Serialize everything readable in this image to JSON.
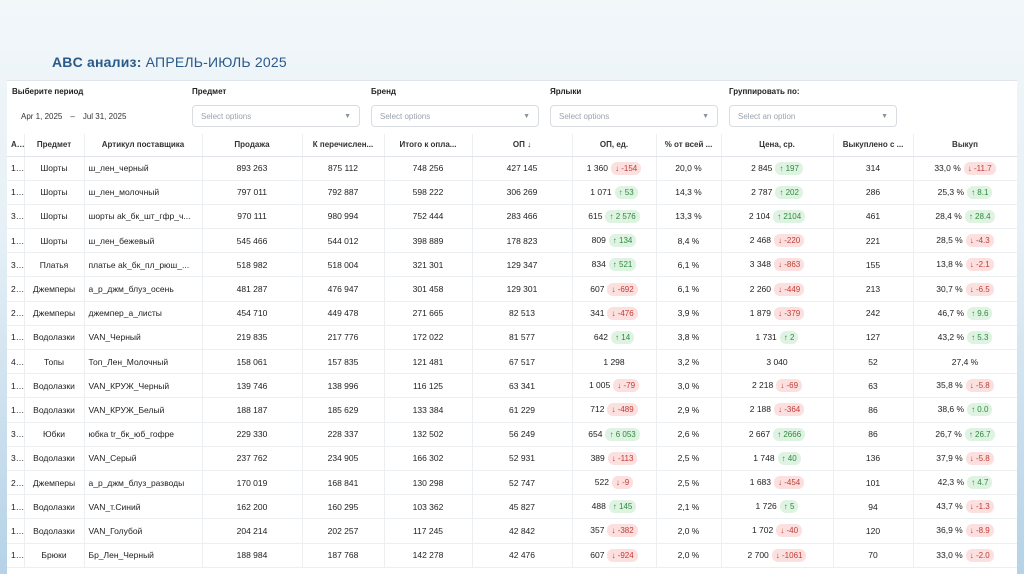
{
  "slide": {
    "title_bold": "ABC анализ:",
    "title_rest": "АПРЕЛЬ-ИЮЛЬ 2025"
  },
  "filters": {
    "period": {
      "label": "Выберите период",
      "from": "Apr 1, 2025",
      "sep": "–",
      "to": "Jul 31, 2025"
    },
    "subject": {
      "label": "Предмет",
      "placeholder": "Select options"
    },
    "brand": {
      "label": "Бренд",
      "placeholder": "Select options"
    },
    "tags": {
      "label": "Ярлыки",
      "placeholder": "Select options"
    },
    "group": {
      "label": "Группировать по:",
      "placeholder": "Select an option"
    }
  },
  "table": {
    "headers": [
      "А..",
      "Предмет",
      "Артикул поставщика",
      "Продажа",
      "К перечислен...",
      "Итого к опла...",
      "ОП ↓",
      "ОП, ед.",
      "% от всей ...",
      "Цена, ср.",
      "Выкуплено с ...",
      "Выкуп"
    ],
    "rows": [
      {
        "a": "1..",
        "subject": "Шорты",
        "article": "ш_лен_черный",
        "sale": "893 263",
        "transfer": "875 112",
        "total": "748 256",
        "op": "427 145",
        "op_units": "1 360",
        "op_delta": "↓ -154",
        "op_dir": "down",
        "pct": "20,0 %",
        "price": "2 845",
        "price_delta": "↑ 197",
        "price_dir": "up",
        "bought": "314",
        "buyout": "33,0 %",
        "buyout_delta": "↓ -11.7",
        "buyout_dir": "down"
      },
      {
        "a": "1..",
        "subject": "Шорты",
        "article": "ш_лен_молочный",
        "sale": "797 011",
        "transfer": "792 887",
        "total": "598 222",
        "op": "306 269",
        "op_units": "1 071",
        "op_delta": "↑ 53",
        "op_dir": "up",
        "pct": "14,3 %",
        "price": "2 787",
        "price_delta": "↑ 202",
        "price_dir": "up",
        "bought": "286",
        "buyout": "25,3 %",
        "buyout_delta": "↑ 8.1",
        "buyout_dir": "up"
      },
      {
        "a": "3..",
        "subject": "Шорты",
        "article": "шорты ak_бк_шт_гфр_ч...",
        "sale": "970 111",
        "transfer": "980 994",
        "total": "752 444",
        "op": "283 466",
        "op_units": "615",
        "op_delta": "↑ 2 576",
        "op_dir": "up",
        "pct": "13,3 %",
        "price": "2 104",
        "price_delta": "↑ 2104",
        "price_dir": "up",
        "bought": "461",
        "buyout": "28,4 %",
        "buyout_delta": "↑ 28.4",
        "buyout_dir": "up"
      },
      {
        "a": "1..",
        "subject": "Шорты",
        "article": "ш_лен_бежевый",
        "sale": "545 466",
        "transfer": "544 012",
        "total": "398 889",
        "op": "178 823",
        "op_units": "809",
        "op_delta": "↑ 134",
        "op_dir": "up",
        "pct": "8,4 %",
        "price": "2 468",
        "price_delta": "↓ -220",
        "price_dir": "down",
        "bought": "221",
        "buyout": "28,5 %",
        "buyout_delta": "↓ -4.3",
        "buyout_dir": "down"
      },
      {
        "a": "3..",
        "subject": "Платья",
        "article": "платье ak_бк_пл_рюш_...",
        "sale": "518 982",
        "transfer": "518 004",
        "total": "321 301",
        "op": "129 347",
        "op_units": "834",
        "op_delta": "↑ 521",
        "op_dir": "up",
        "pct": "6,1 %",
        "price": "3 348",
        "price_delta": "↓ -863",
        "price_dir": "down",
        "bought": "155",
        "buyout": "13,8 %",
        "buyout_delta": "↓ -2.1",
        "buyout_dir": "down"
      },
      {
        "a": "2..",
        "subject": "Джемперы",
        "article": "а_р_джм_блуз_осень",
        "sale": "481 287",
        "transfer": "476 947",
        "total": "301 458",
        "op": "129 301",
        "op_units": "607",
        "op_delta": "↓ -692",
        "op_dir": "down",
        "pct": "6,1 %",
        "price": "2 260",
        "price_delta": "↓ -449",
        "price_dir": "down",
        "bought": "213",
        "buyout": "30,7 %",
        "buyout_delta": "↓ -6.5",
        "buyout_dir": "down"
      },
      {
        "a": "2..",
        "subject": "Джемперы",
        "article": "джемпер_а_листы",
        "sale": "454 710",
        "transfer": "449 478",
        "total": "271 665",
        "op": "82 513",
        "op_units": "341",
        "op_delta": "↓ -476",
        "op_dir": "down",
        "pct": "3,9 %",
        "price": "1 879",
        "price_delta": "↓ -379",
        "price_dir": "down",
        "bought": "242",
        "buyout": "46,7 %",
        "buyout_delta": "↑ 9.6",
        "buyout_dir": "up"
      },
      {
        "a": "1..",
        "subject": "Водолазки",
        "article": "VAN_Черный",
        "sale": "219 835",
        "transfer": "217 776",
        "total": "172 022",
        "op": "81 577",
        "op_units": "642",
        "op_delta": "↑ 14",
        "op_dir": "up",
        "pct": "3,8 %",
        "price": "1 731",
        "price_delta": "↑ 2",
        "price_dir": "up",
        "bought": "127",
        "buyout": "43,2 %",
        "buyout_delta": "↑ 5.3",
        "buyout_dir": "up"
      },
      {
        "a": "4..",
        "subject": "Топы",
        "article": "Топ_Лен_Молочный",
        "sale": "158 061",
        "transfer": "157 835",
        "total": "121 481",
        "op": "67 517",
        "op_units": "1 298",
        "op_delta": "",
        "op_dir": "",
        "pct": "3,2 %",
        "price": "3 040",
        "price_delta": "",
        "price_dir": "",
        "bought": "52",
        "buyout": "27,4 %",
        "buyout_delta": "",
        "buyout_dir": ""
      },
      {
        "a": "1..",
        "subject": "Водолазки",
        "article": "VAN_КРУЖ_Черный",
        "sale": "139 746",
        "transfer": "138 996",
        "total": "116 125",
        "op": "63 341",
        "op_units": "1 005",
        "op_delta": "↓ -79",
        "op_dir": "down",
        "pct": "3,0 %",
        "price": "2 218",
        "price_delta": "↓ -69",
        "price_dir": "down",
        "bought": "63",
        "buyout": "35,8 %",
        "buyout_delta": "↓ -5.8",
        "buyout_dir": "down"
      },
      {
        "a": "1..",
        "subject": "Водолазки",
        "article": "VAN_КРУЖ_Белый",
        "sale": "188 187",
        "transfer": "185 629",
        "total": "133 384",
        "op": "61 229",
        "op_units": "712",
        "op_delta": "↓ -489",
        "op_dir": "down",
        "pct": "2,9 %",
        "price": "2 188",
        "price_delta": "↓ -364",
        "price_dir": "down",
        "bought": "86",
        "buyout": "38,6 %",
        "buyout_delta": "↑ 0.0",
        "buyout_dir": "up"
      },
      {
        "a": "3..",
        "subject": "Юбки",
        "article": "юбка tr_бк_юб_гофре",
        "sale": "229 330",
        "transfer": "228 337",
        "total": "132 502",
        "op": "56 249",
        "op_units": "654",
        "op_delta": "↑ 6 053",
        "op_dir": "up",
        "pct": "2,6 %",
        "price": "2 667",
        "price_delta": "↑ 2666",
        "price_dir": "up",
        "bought": "86",
        "buyout": "26,7 %",
        "buyout_delta": "↑ 26.7",
        "buyout_dir": "up"
      },
      {
        "a": "3..",
        "subject": "Водолазки",
        "article": "VAN_Серый",
        "sale": "237 762",
        "transfer": "234 905",
        "total": "166 302",
        "op": "52 931",
        "op_units": "389",
        "op_delta": "↓ -113",
        "op_dir": "down",
        "pct": "2,5 %",
        "price": "1 748",
        "price_delta": "↑ 40",
        "price_dir": "up",
        "bought": "136",
        "buyout": "37,9 %",
        "buyout_delta": "↓ -5.8",
        "buyout_dir": "down"
      },
      {
        "a": "2..",
        "subject": "Джемперы",
        "article": "а_р_джм_блуз_разводы",
        "sale": "170 019",
        "transfer": "168 841",
        "total": "130 298",
        "op": "52 747",
        "op_units": "522",
        "op_delta": "↓ -9",
        "op_dir": "down",
        "pct": "2,5 %",
        "price": "1 683",
        "price_delta": "↓ -454",
        "price_dir": "down",
        "bought": "101",
        "buyout": "42,3 %",
        "buyout_delta": "↑ 4.7",
        "buyout_dir": "up"
      },
      {
        "a": "1..",
        "subject": "Водолазки",
        "article": "VAN_т.Синий",
        "sale": "162 200",
        "transfer": "160 295",
        "total": "103 362",
        "op": "45 827",
        "op_units": "488",
        "op_delta": "↑ 145",
        "op_dir": "up",
        "pct": "2,1 %",
        "price": "1 726",
        "price_delta": "↑ 5",
        "price_dir": "up",
        "bought": "94",
        "buyout": "43,7 %",
        "buyout_delta": "↓ -1.3",
        "buyout_dir": "down"
      },
      {
        "a": "1..",
        "subject": "Водолазки",
        "article": "VAN_Голубой",
        "sale": "204 214",
        "transfer": "202 257",
        "total": "117 245",
        "op": "42 842",
        "op_units": "357",
        "op_delta": "↓ -382",
        "op_dir": "down",
        "pct": "2,0 %",
        "price": "1 702",
        "price_delta": "↓ -40",
        "price_dir": "down",
        "bought": "120",
        "buyout": "36,9 %",
        "buyout_delta": "↓ -8.9",
        "buyout_dir": "down"
      },
      {
        "a": "1..",
        "subject": "Брюки",
        "article": "Бр_Лен_Черный",
        "sale": "188 984",
        "transfer": "187 768",
        "total": "142 278",
        "op": "42 476",
        "op_units": "607",
        "op_delta": "↓ -924",
        "op_dir": "down",
        "pct": "2,0 %",
        "price": "2 700",
        "price_delta": "↓ -1061",
        "price_dir": "down",
        "bought": "70",
        "buyout": "33,0 %",
        "buyout_delta": "↓ -2.0",
        "buyout_dir": "down"
      }
    ]
  },
  "colors": {
    "up_bg": "#dff3e2",
    "up_fg": "#2c8a3c",
    "down_bg": "#fbe0df",
    "down_fg": "#c33b34",
    "title": "#2a5a8a"
  }
}
